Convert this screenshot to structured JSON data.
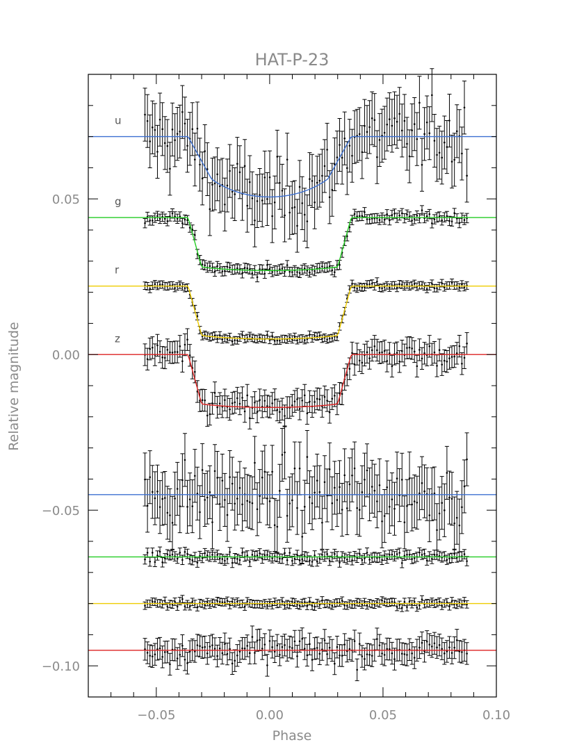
{
  "chart_data": {
    "type": "scatter",
    "title": "HAT-P-23",
    "xlabel": "Phase",
    "ylabel": "Relative magnitude",
    "xlim": [
      -0.08,
      0.1
    ],
    "ylim": [
      -0.11,
      0.09
    ],
    "x_ticks": [
      {
        "value": -0.05,
        "label": "−0.05"
      },
      {
        "value": 0.0,
        "label": "0.00"
      },
      {
        "value": 0.05,
        "label": "0.05"
      },
      {
        "value": 0.1,
        "label": "0.10"
      }
    ],
    "y_ticks": [
      {
        "value": 0.05,
        "label": "0.05"
      },
      {
        "value": 0.0,
        "label": "0.00"
      },
      {
        "value": -0.05,
        "label": "−0.05"
      },
      {
        "value": -0.1,
        "label": "−0.10"
      }
    ],
    "phase_range": [
      -0.055,
      0.087
    ],
    "points_per_curve": 130,
    "light_curves": [
      {
        "band": "u",
        "color": "#3b6fd1",
        "baseline": 0.07,
        "depth": 0.019,
        "half_width": 0.036,
        "ingress": 0.01,
        "scatter": 0.0075,
        "error": 0.0085
      },
      {
        "band": "g",
        "color": "#22cc22",
        "baseline": 0.044,
        "depth": 0.017,
        "half_width": 0.036,
        "ingress": 0.006,
        "scatter": 0.0012,
        "error": 0.0015
      },
      {
        "band": "r",
        "color": "#eecc00",
        "baseline": 0.022,
        "depth": 0.017,
        "half_width": 0.036,
        "ingress": 0.006,
        "scatter": 0.0008,
        "error": 0.0012
      },
      {
        "band": "z",
        "color": "#dd2222",
        "baseline": 0.0,
        "depth": 0.017,
        "half_width": 0.036,
        "ingress": 0.006,
        "scatter": 0.0028,
        "error": 0.0035
      }
    ],
    "residuals": [
      {
        "color": "#3b6fd1",
        "baseline": -0.045,
        "scatter": 0.0075,
        "error": 0.0085
      },
      {
        "color": "#22cc22",
        "baseline": -0.065,
        "scatter": 0.0012,
        "error": 0.0015
      },
      {
        "color": "#eecc00",
        "baseline": -0.08,
        "scatter": 0.0008,
        "error": 0.0012
      },
      {
        "color": "#dd2222",
        "baseline": -0.095,
        "scatter": 0.0028,
        "error": 0.0035
      }
    ]
  }
}
